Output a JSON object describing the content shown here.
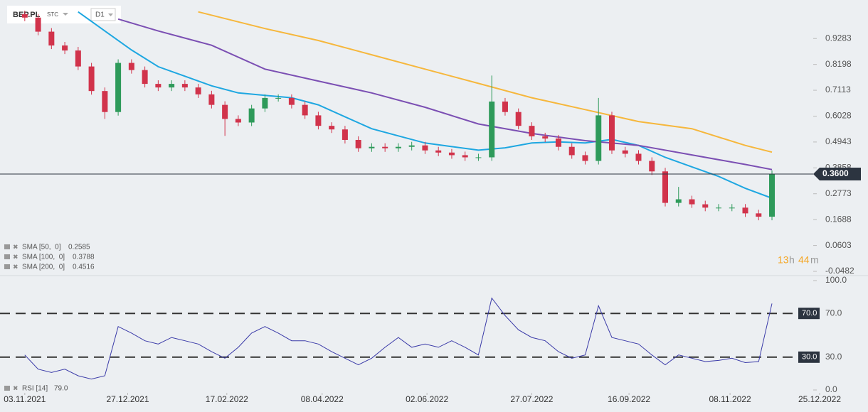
{
  "instrument": {
    "symbol": "BEP.PL",
    "market": "STC",
    "interval": "D1"
  },
  "countdown": [
    "13",
    "h",
    "44",
    "m"
  ],
  "chart_data": [
    {
      "type": "candlestick",
      "x": [
        "2021-11-03",
        "2021-11-10",
        "2021-11-17",
        "2021-11-24",
        "2021-12-01",
        "2021-12-08",
        "2021-12-15",
        "2021-12-22",
        "2021-12-29",
        "2022-01-05",
        "2022-01-12",
        "2022-01-19",
        "2022-01-26",
        "2022-02-02",
        "2022-02-09",
        "2022-02-16",
        "2022-02-23",
        "2022-03-02",
        "2022-03-09",
        "2022-03-16",
        "2022-03-23",
        "2022-03-30",
        "2022-04-06",
        "2022-04-13",
        "2022-04-20",
        "2022-04-27",
        "2022-05-04",
        "2022-05-11",
        "2022-05-18",
        "2022-05-25",
        "2022-06-01",
        "2022-06-08",
        "2022-06-15",
        "2022-06-22",
        "2022-06-29",
        "2022-07-06",
        "2022-07-13",
        "2022-07-20",
        "2022-07-27",
        "2022-08-03",
        "2022-08-10",
        "2022-08-17",
        "2022-08-24",
        "2022-08-31",
        "2022-09-07",
        "2022-09-14",
        "2022-09-21",
        "2022-09-28",
        "2022-10-05",
        "2022-10-12",
        "2022-10-19",
        "2022-10-26",
        "2022-11-02",
        "2022-11-09",
        "2022-11-16",
        "2022-11-23",
        "2022-11-30"
      ],
      "open": [
        1.03,
        1.016,
        0.957,
        0.899,
        0.878,
        0.811,
        0.708,
        0.62,
        0.826,
        0.796,
        0.738,
        0.723,
        0.738,
        0.723,
        0.694,
        0.65,
        0.591,
        0.576,
        0.635,
        0.679,
        0.679,
        0.65,
        0.606,
        0.562,
        0.547,
        0.503,
        0.468,
        0.474,
        0.468,
        0.474,
        0.48,
        0.459,
        0.45,
        0.439,
        0.43,
        0.43,
        0.664,
        0.62,
        0.562,
        0.518,
        0.509,
        0.474,
        0.439,
        0.415,
        0.606,
        0.459,
        0.445,
        0.415,
        0.371,
        0.239,
        0.254,
        0.233,
        0.219,
        0.219,
        0.219,
        0.195,
        0.181
      ],
      "high": [
        1.045,
        1.031,
        0.972,
        0.914,
        0.893,
        0.826,
        0.723,
        0.841,
        0.841,
        0.811,
        0.753,
        0.753,
        0.753,
        0.738,
        0.709,
        0.665,
        0.606,
        0.65,
        0.694,
        0.694,
        0.694,
        0.665,
        0.621,
        0.577,
        0.562,
        0.518,
        0.489,
        0.489,
        0.489,
        0.495,
        0.495,
        0.474,
        0.465,
        0.454,
        0.445,
        0.773,
        0.679,
        0.635,
        0.577,
        0.533,
        0.524,
        0.489,
        0.454,
        0.679,
        0.621,
        0.474,
        0.46,
        0.43,
        0.386,
        0.306,
        0.269,
        0.248,
        0.234,
        0.234,
        0.234,
        0.21,
        0.375
      ],
      "low": [
        1.001,
        0.942,
        0.884,
        0.863,
        0.796,
        0.693,
        0.591,
        0.605,
        0.781,
        0.723,
        0.708,
        0.708,
        0.708,
        0.679,
        0.635,
        0.52,
        0.561,
        0.561,
        0.62,
        0.664,
        0.635,
        0.591,
        0.547,
        0.532,
        0.488,
        0.453,
        0.453,
        0.453,
        0.453,
        0.459,
        0.444,
        0.435,
        0.424,
        0.415,
        0.415,
        0.415,
        0.605,
        0.547,
        0.503,
        0.494,
        0.459,
        0.424,
        0.4,
        0.4,
        0.444,
        0.43,
        0.4,
        0.356,
        0.224,
        0.224,
        0.218,
        0.204,
        0.204,
        0.204,
        0.18,
        0.166,
        0.166
      ],
      "close": [
        1.016,
        0.957,
        0.899,
        0.878,
        0.811,
        0.708,
        0.62,
        0.826,
        0.796,
        0.738,
        0.723,
        0.738,
        0.723,
        0.694,
        0.65,
        0.591,
        0.576,
        0.635,
        0.679,
        0.679,
        0.65,
        0.606,
        0.562,
        0.547,
        0.503,
        0.468,
        0.474,
        0.468,
        0.474,
        0.48,
        0.459,
        0.45,
        0.439,
        0.43,
        0.43,
        0.664,
        0.62,
        0.562,
        0.518,
        0.509,
        0.474,
        0.439,
        0.415,
        0.606,
        0.459,
        0.445,
        0.415,
        0.371,
        0.239,
        0.254,
        0.233,
        0.219,
        0.219,
        0.219,
        0.195,
        0.181,
        0.36
      ],
      "up_color": "#2e9a5a",
      "down_color": "#d1334b",
      "last_price": {
        "value": 0.36,
        "label": "0.3600"
      },
      "overlays": [
        {
          "name": "SMA [50,  0]",
          "color": "#1ea7e1",
          "x": [
            "2021-12-01",
            "2021-12-15",
            "2021-12-29",
            "2022-01-12",
            "2022-01-26",
            "2022-02-09",
            "2022-02-23",
            "2022-03-09",
            "2022-03-23",
            "2022-04-06",
            "2022-04-20",
            "2022-05-04",
            "2022-05-18",
            "2022-06-01",
            "2022-06-15",
            "2022-06-29",
            "2022-07-13",
            "2022-07-27",
            "2022-08-10",
            "2022-08-24",
            "2022-09-07",
            "2022-09-21",
            "2022-10-05",
            "2022-10-19",
            "2022-11-02",
            "2022-11-16",
            "2022-11-30"
          ],
          "values": [
            1.04,
            0.96,
            0.88,
            0.81,
            0.77,
            0.73,
            0.7,
            0.69,
            0.68,
            0.65,
            0.6,
            0.55,
            0.52,
            0.49,
            0.475,
            0.46,
            0.47,
            0.49,
            0.495,
            0.49,
            0.505,
            0.48,
            0.43,
            0.39,
            0.35,
            0.3,
            0.2585
          ]
        },
        {
          "name": "SMA [100,  0]",
          "color": "#7b4fb3",
          "x": [
            "2021-12-22",
            "2022-01-12",
            "2022-02-09",
            "2022-03-09",
            "2022-04-06",
            "2022-05-04",
            "2022-06-01",
            "2022-06-29",
            "2022-07-27",
            "2022-08-24",
            "2022-09-21",
            "2022-10-19",
            "2022-11-16",
            "2022-11-30"
          ],
          "values": [
            1.01,
            0.96,
            0.9,
            0.8,
            0.75,
            0.7,
            0.64,
            0.57,
            0.53,
            0.5,
            0.48,
            0.44,
            0.4,
            0.3788
          ]
        },
        {
          "name": "SMA [200,  0]",
          "color": "#f6b73c",
          "x": [
            "2022-02-02",
            "2022-03-09",
            "2022-04-06",
            "2022-05-04",
            "2022-06-01",
            "2022-06-29",
            "2022-07-27",
            "2022-08-24",
            "2022-09-21",
            "2022-10-19",
            "2022-11-16",
            "2022-11-30"
          ],
          "values": [
            1.04,
            0.97,
            0.92,
            0.86,
            0.8,
            0.74,
            0.68,
            0.63,
            0.58,
            0.55,
            0.48,
            0.4516
          ]
        }
      ],
      "xlim": [
        "2021-10-21",
        "2022-12-25"
      ],
      "ylim": [
        -0.0482,
        1.0749
      ],
      "yticks": [
        0.9283,
        0.8198,
        0.7113,
        0.6028,
        0.4943,
        0.3858,
        0.2773,
        0.1688,
        0.0603,
        -0.0482
      ]
    },
    {
      "type": "line",
      "name": "RSI [14]",
      "color": "#3a3aa8",
      "x": [
        "2021-11-03",
        "2021-11-10",
        "2021-11-17",
        "2021-11-24",
        "2021-12-01",
        "2021-12-08",
        "2021-12-15",
        "2021-12-22",
        "2021-12-29",
        "2022-01-05",
        "2022-01-12",
        "2022-01-19",
        "2022-01-26",
        "2022-02-02",
        "2022-02-09",
        "2022-02-16",
        "2022-02-23",
        "2022-03-02",
        "2022-03-09",
        "2022-03-16",
        "2022-03-23",
        "2022-03-30",
        "2022-04-06",
        "2022-04-13",
        "2022-04-20",
        "2022-04-27",
        "2022-05-04",
        "2022-05-11",
        "2022-05-18",
        "2022-05-25",
        "2022-06-01",
        "2022-06-08",
        "2022-06-15",
        "2022-06-22",
        "2022-06-29",
        "2022-07-06",
        "2022-07-13",
        "2022-07-20",
        "2022-07-27",
        "2022-08-03",
        "2022-08-10",
        "2022-08-17",
        "2022-08-24",
        "2022-08-31",
        "2022-09-07",
        "2022-09-14",
        "2022-09-21",
        "2022-09-28",
        "2022-10-05",
        "2022-10-12",
        "2022-10-19",
        "2022-10-26",
        "2022-11-02",
        "2022-11-09",
        "2022-11-16",
        "2022-11-23",
        "2022-11-30"
      ],
      "values": [
        32,
        19,
        16,
        19,
        13,
        10,
        13,
        58,
        52,
        45,
        42,
        48,
        45,
        42,
        35,
        29,
        39,
        52,
        58,
        52,
        45,
        45,
        42,
        35,
        29,
        23,
        29,
        39,
        48,
        39,
        42,
        39,
        45,
        39,
        32,
        84,
        68,
        55,
        48,
        45,
        35,
        29,
        32,
        77,
        48,
        45,
        42,
        32,
        23,
        32,
        29,
        26,
        27,
        29,
        25,
        26,
        79
      ],
      "value_label": "79.0",
      "levels": [
        {
          "value": 70,
          "label": "70.0"
        },
        {
          "value": 30,
          "label": "30.0"
        }
      ],
      "xlim": [
        "2021-10-21",
        "2022-12-25"
      ],
      "xticks": [
        {
          "value": "2021-11-03",
          "label": "03.11.2021"
        },
        {
          "value": "2021-12-27",
          "label": "27.12.2021"
        },
        {
          "value": "2022-02-17",
          "label": "17.02.2022"
        },
        {
          "value": "2022-04-08",
          "label": "08.04.2022"
        },
        {
          "value": "2022-06-02",
          "label": "02.06.2022"
        },
        {
          "value": "2022-07-27",
          "label": "27.07.2022"
        },
        {
          "value": "2022-09-16",
          "label": "16.09.2022"
        },
        {
          "value": "2022-11-08",
          "label": "08.11.2022"
        },
        {
          "value": "2022-12-25",
          "label": "25.12.2022"
        }
      ],
      "ylim": [
        0,
        100
      ],
      "yticks": [
        {
          "value": 100,
          "label": "100.0"
        },
        {
          "value": 70,
          "label": "70.0"
        },
        {
          "value": 30,
          "label": "30.0"
        },
        {
          "value": 0,
          "label": "0.0"
        }
      ]
    }
  ]
}
